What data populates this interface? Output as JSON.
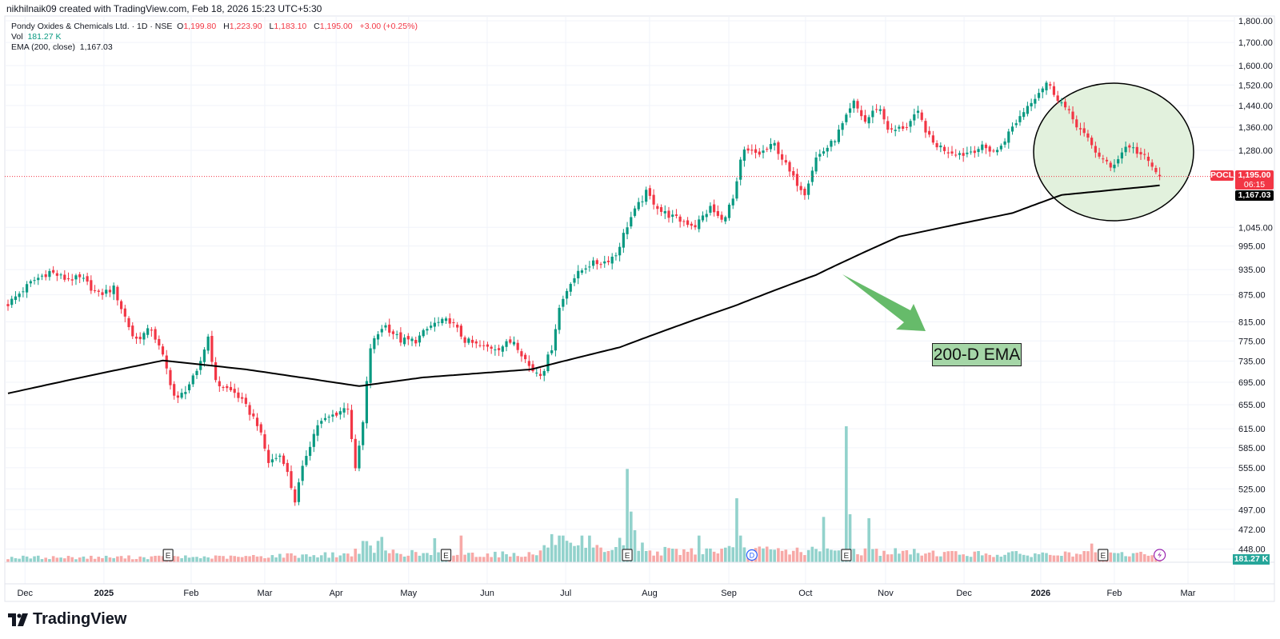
{
  "header": {
    "credit": "nikhilnaik09 created with TradingView.com, Feb 18, 2026 15:23 UTC+5:30"
  },
  "legend": {
    "symbol": "Pondy Oxides & Chemicals Ltd. · 1D · NSE",
    "o_label": "O",
    "o": "1,199.80",
    "h_label": "H",
    "h": "1,223.90",
    "l_label": "L",
    "l": "1,183.10",
    "c_label": "C",
    "c": "1,195.00",
    "change": "+3.00 (+0.25%)",
    "vol_label": "Vol",
    "vol": "181.27 K",
    "ema_label": "EMA (200, close)",
    "ema": "1,167.03"
  },
  "badges": {
    "ticker": "POCL",
    "price": "1,195.00",
    "countdown": "06:15",
    "ema": "1,167.03",
    "volume": "181.27 K"
  },
  "annotation": {
    "label": "200-D EMA"
  },
  "logo": {
    "text": "TradingView"
  },
  "colors": {
    "up": "#089981",
    "down": "#f23645",
    "vol_up": "#92d2cc",
    "vol_down": "#f7a9a7",
    "ema": "#000000",
    "circle_fill": "#e2f1dd",
    "arrow": "#66bb6a"
  },
  "chart_data": {
    "type": "candlestick",
    "title": "Pondy Oxides & Chemicals Ltd. · 1D · NSE",
    "scale": "log",
    "ylim": [
      448,
      1800
    ],
    "y_ticks": [
      "1,800.00",
      "1,700.00",
      "1,600.00",
      "1,520.00",
      "1,440.00",
      "1,360.00",
      "1,280.00",
      "1,045.00",
      "995.00",
      "935.00",
      "875.00",
      "815.00",
      "775.00",
      "735.00",
      "695.00",
      "655.00",
      "615.00",
      "585.00",
      "555.00",
      "525.00",
      "497.00",
      "472.00",
      "448.00"
    ],
    "x_ticks": [
      {
        "label": "Dec",
        "bar": 4.5,
        "bold": false
      },
      {
        "label": "2025",
        "bar": 25.4,
        "bold": true
      },
      {
        "label": "Feb",
        "bar": 48.5,
        "bold": false
      },
      {
        "label": "Mar",
        "bar": 68,
        "bold": false
      },
      {
        "label": "Apr",
        "bar": 86.9,
        "bold": false
      },
      {
        "label": "May",
        "bar": 106.1,
        "bold": false
      },
      {
        "label": "Jun",
        "bar": 126.9,
        "bold": false
      },
      {
        "label": "Jul",
        "bar": 147.7,
        "bold": false
      },
      {
        "label": "Aug",
        "bar": 169.9,
        "bold": false
      },
      {
        "label": "Sep",
        "bar": 190.9,
        "bold": false
      },
      {
        "label": "Oct",
        "bar": 211.2,
        "bold": false
      },
      {
        "label": "Nov",
        "bar": 232.4,
        "bold": false
      },
      {
        "label": "Dec",
        "bar": 253.2,
        "bold": false
      },
      {
        "label": "2026",
        "bar": 273.5,
        "bold": true
      },
      {
        "label": "Feb",
        "bar": 293,
        "bold": false
      },
      {
        "label": "Mar",
        "bar": 312.5,
        "bold": false
      }
    ],
    "bars": 306,
    "close_path": [
      [
        0,
        854
      ],
      [
        6.5,
        907
      ],
      [
        11,
        930
      ],
      [
        15,
        913
      ],
      [
        19.5,
        913
      ],
      [
        24,
        875
      ],
      [
        28,
        890
      ],
      [
        30,
        845
      ],
      [
        33.5,
        776
      ],
      [
        38,
        800
      ],
      [
        41,
        743
      ],
      [
        44.5,
        659
      ],
      [
        50,
        711
      ],
      [
        53,
        784
      ],
      [
        55,
        694
      ],
      [
        60.5,
        674
      ],
      [
        66,
        624
      ],
      [
        69,
        563
      ],
      [
        72.5,
        575
      ],
      [
        76,
        509
      ],
      [
        79,
        575
      ],
      [
        82,
        622
      ],
      [
        86.5,
        639
      ],
      [
        90,
        652
      ],
      [
        92,
        550
      ],
      [
        94,
        624
      ],
      [
        96,
        762
      ],
      [
        99.5,
        810
      ],
      [
        104,
        776
      ],
      [
        108,
        776
      ],
      [
        112.5,
        810
      ],
      [
        117,
        818
      ],
      [
        121,
        776
      ],
      [
        125.5,
        762
      ],
      [
        130,
        762
      ],
      [
        134,
        776
      ],
      [
        138.5,
        719
      ],
      [
        141.5,
        711
      ],
      [
        144,
        762
      ],
      [
        146,
        845
      ],
      [
        149,
        907
      ],
      [
        153.5,
        947
      ],
      [
        158,
        955
      ],
      [
        161,
        973
      ],
      [
        164.5,
        1064
      ],
      [
        169,
        1144
      ],
      [
        173,
        1090
      ],
      [
        177.5,
        1066
      ],
      [
        182,
        1050
      ],
      [
        186,
        1100
      ],
      [
        189,
        1062
      ],
      [
        192.5,
        1135
      ],
      [
        194.5,
        1277
      ],
      [
        199,
        1268
      ],
      [
        203,
        1300
      ],
      [
        207.5,
        1196
      ],
      [
        211,
        1146
      ],
      [
        214,
        1255
      ],
      [
        218.5,
        1308
      ],
      [
        221.5,
        1380
      ],
      [
        224,
        1450
      ],
      [
        227,
        1380
      ],
      [
        230.5,
        1440
      ],
      [
        233.5,
        1342
      ],
      [
        238,
        1366
      ],
      [
        241,
        1410
      ],
      [
        244.5,
        1308
      ],
      [
        249,
        1277
      ],
      [
        253,
        1268
      ],
      [
        257.5,
        1290
      ],
      [
        262,
        1277
      ],
      [
        266,
        1360
      ],
      [
        270.5,
        1450
      ],
      [
        275,
        1530
      ],
      [
        279,
        1450
      ],
      [
        283.5,
        1360
      ],
      [
        288,
        1277
      ],
      [
        292,
        1221
      ],
      [
        296.5,
        1300
      ],
      [
        301,
        1255
      ],
      [
        305,
        1195
      ]
    ],
    "last_bar": {
      "open": 1199.8,
      "high": 1223.9,
      "low": 1183.1,
      "close": 1195.0,
      "volume_k": 181.27
    },
    "ema_200_path": [
      [
        0,
        675
      ],
      [
        41,
        736
      ],
      [
        63,
        719
      ],
      [
        93,
        688
      ],
      [
        110,
        704
      ],
      [
        138.5,
        719
      ],
      [
        162,
        762
      ],
      [
        192.5,
        850
      ],
      [
        214,
        922
      ],
      [
        236,
        1020
      ],
      [
        266,
        1085
      ],
      [
        279,
        1138
      ],
      [
        305,
        1167.03
      ]
    ],
    "volume_base_k": [
      [
        0,
        180
      ],
      [
        60,
        190
      ],
      [
        75,
        260
      ],
      [
        90,
        280
      ],
      [
        94,
        600
      ],
      [
        100,
        400
      ],
      [
        110,
        300
      ],
      [
        140,
        300
      ],
      [
        145,
        900
      ],
      [
        150,
        450
      ],
      [
        160,
        500
      ],
      [
        164,
        900
      ],
      [
        170,
        400
      ],
      [
        190,
        450
      ],
      [
        230,
        400
      ],
      [
        260,
        300
      ],
      [
        305,
        300
      ]
    ],
    "volume_spikes_k": [
      [
        98,
        800
      ],
      [
        99,
        950
      ],
      [
        113,
        900
      ],
      [
        120,
        1000
      ],
      [
        146,
        1000
      ],
      [
        147,
        1000
      ],
      [
        152,
        1000
      ],
      [
        154,
        1000
      ],
      [
        164,
        3500
      ],
      [
        165,
        1900
      ],
      [
        166,
        1200
      ],
      [
        183,
        1000
      ],
      [
        193,
        2400
      ],
      [
        194,
        1000
      ],
      [
        216,
        1700
      ],
      [
        222,
        5100
      ],
      [
        223,
        1800
      ],
      [
        228,
        1650
      ],
      [
        287,
        700
      ]
    ],
    "events": [
      {
        "type": "E",
        "bar": 42.4
      },
      {
        "type": "E",
        "bar": 116
      },
      {
        "type": "E",
        "bar": 164
      },
      {
        "type": "D",
        "bar": 197
      },
      {
        "type": "E",
        "bar": 222
      },
      {
        "type": "E",
        "bar": 290
      },
      {
        "type": "flash",
        "bar": 305
      }
    ]
  }
}
